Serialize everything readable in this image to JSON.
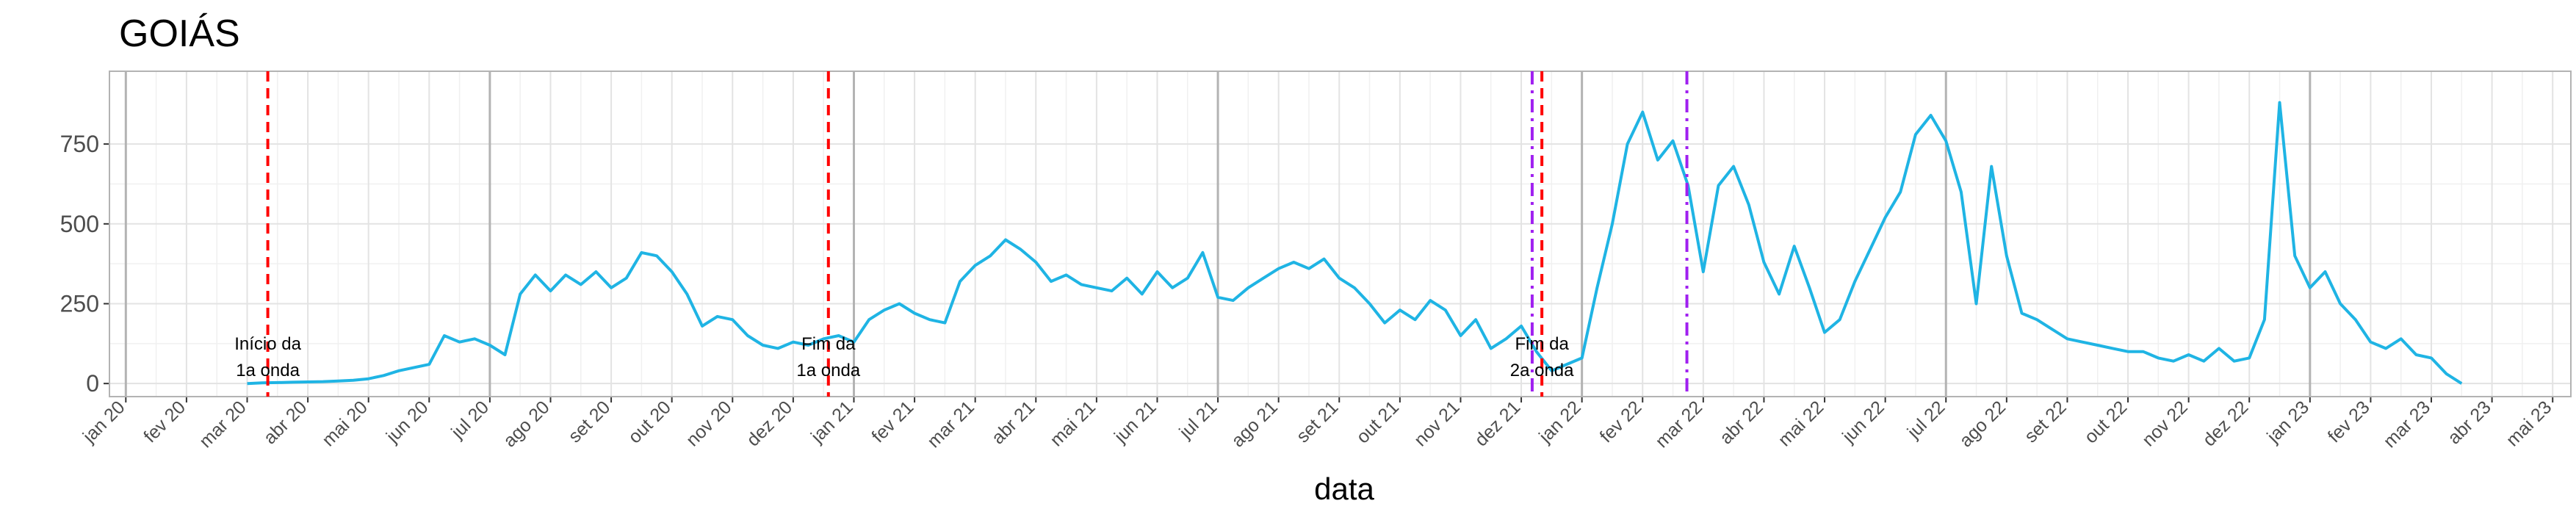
{
  "chart_data": {
    "type": "line",
    "title": "GOIÁS",
    "x_label": "data",
    "xlim": [
      -0.27,
      40.3
    ],
    "ylim": [
      -41,
      978
    ],
    "yticks": [
      0,
      250,
      500,
      750
    ],
    "grid": true,
    "xticks": [
      {
        "value": 0,
        "label": "jan 20"
      },
      {
        "value": 1,
        "label": "fev 20"
      },
      {
        "value": 2,
        "label": "mar 20"
      },
      {
        "value": 3,
        "label": "abr 20"
      },
      {
        "value": 4,
        "label": "mai 20"
      },
      {
        "value": 5,
        "label": "jun 20"
      },
      {
        "value": 6,
        "label": "jul 20"
      },
      {
        "value": 7,
        "label": "ago 20"
      },
      {
        "value": 8,
        "label": "set 20"
      },
      {
        "value": 9,
        "label": "out 20"
      },
      {
        "value": 10,
        "label": "nov 20"
      },
      {
        "value": 11,
        "label": "dez 20"
      },
      {
        "value": 12,
        "label": "jan 21"
      },
      {
        "value": 13,
        "label": "fev 21"
      },
      {
        "value": 14,
        "label": "mar 21"
      },
      {
        "value": 15,
        "label": "abr 21"
      },
      {
        "value": 16,
        "label": "mai 21"
      },
      {
        "value": 17,
        "label": "jun 21"
      },
      {
        "value": 18,
        "label": "jul 21"
      },
      {
        "value": 19,
        "label": "ago 21"
      },
      {
        "value": 20,
        "label": "set 21"
      },
      {
        "value": 21,
        "label": "out 21"
      },
      {
        "value": 22,
        "label": "nov 21"
      },
      {
        "value": 23,
        "label": "dez 21"
      },
      {
        "value": 24,
        "label": "jan 22"
      },
      {
        "value": 25,
        "label": "fev 22"
      },
      {
        "value": 26,
        "label": "mar 22"
      },
      {
        "value": 27,
        "label": "abr 22"
      },
      {
        "value": 28,
        "label": "mai 22"
      },
      {
        "value": 29,
        "label": "jun 22"
      },
      {
        "value": 30,
        "label": "jul 22"
      },
      {
        "value": 31,
        "label": "ago 22"
      },
      {
        "value": 32,
        "label": "set 22"
      },
      {
        "value": 33,
        "label": "out 22"
      },
      {
        "value": 34,
        "label": "nov 22"
      },
      {
        "value": 35,
        "label": "dez 22"
      },
      {
        "value": 36,
        "label": "jan 23"
      },
      {
        "value": 37,
        "label": "fev 23"
      },
      {
        "value": 38,
        "label": "mar 23"
      },
      {
        "value": 39,
        "label": "abr 23"
      },
      {
        "value": 40,
        "label": "mai 23"
      }
    ],
    "color": "#1fb4e4",
    "x": [
      2.0,
      2.25,
      2.5,
      2.75,
      3.0,
      3.25,
      3.5,
      3.75,
      4.0,
      4.25,
      4.5,
      4.75,
      5.0,
      5.25,
      5.5,
      5.75,
      6.0,
      6.25,
      6.5,
      6.75,
      7.0,
      7.25,
      7.5,
      7.75,
      8.0,
      8.25,
      8.5,
      8.75,
      9.0,
      9.25,
      9.5,
      9.75,
      10.0,
      10.25,
      10.5,
      10.75,
      11.0,
      11.25,
      11.5,
      11.75,
      12.0,
      12.25,
      12.5,
      12.75,
      13.0,
      13.25,
      13.5,
      13.75,
      14.0,
      14.25,
      14.5,
      14.75,
      15.0,
      15.25,
      15.5,
      15.75,
      16.0,
      16.25,
      16.5,
      16.75,
      17.0,
      17.25,
      17.5,
      17.75,
      18.0,
      18.25,
      18.5,
      18.75,
      19.0,
      19.25,
      19.5,
      19.75,
      20.0,
      20.25,
      20.5,
      20.75,
      21.0,
      21.25,
      21.5,
      21.75,
      22.0,
      22.25,
      22.5,
      22.75,
      23.0,
      23.25,
      23.5,
      23.75,
      24.0,
      24.25,
      24.5,
      24.75,
      25.0,
      25.25,
      25.5,
      25.75,
      26.0,
      26.25,
      26.5,
      26.75,
      27.0,
      27.25,
      27.5,
      27.75,
      28.0,
      28.25,
      28.5,
      28.75,
      29.0,
      29.25,
      29.5,
      29.75,
      30.0,
      30.25,
      30.5,
      30.75,
      31.0,
      31.25,
      31.5,
      31.75,
      32.0,
      32.25,
      32.5,
      32.75,
      33.0,
      33.25,
      33.5,
      33.75,
      34.0,
      34.25,
      34.5,
      34.75,
      35.0,
      35.25,
      35.5,
      35.75,
      36.0,
      36.25,
      36.5,
      36.75,
      37.0,
      37.25,
      37.5,
      37.75,
      38.0,
      38.25,
      38.5
    ],
    "values": [
      0,
      2,
      3,
      4,
      5,
      6,
      8,
      10,
      15,
      25,
      40,
      50,
      60,
      150,
      130,
      140,
      120,
      90,
      280,
      340,
      290,
      340,
      310,
      350,
      300,
      330,
      410,
      400,
      350,
      280,
      180,
      210,
      200,
      150,
      120,
      110,
      130,
      120,
      140,
      150,
      130,
      200,
      230,
      250,
      220,
      200,
      190,
      320,
      370,
      400,
      450,
      420,
      380,
      320,
      340,
      310,
      300,
      290,
      330,
      280,
      350,
      300,
      330,
      410,
      270,
      260,
      300,
      330,
      360,
      380,
      360,
      390,
      330,
      300,
      250,
      190,
      230,
      200,
      260,
      230,
      150,
      200,
      110,
      140,
      180,
      100,
      40,
      60,
      80,
      300,
      500,
      750,
      850,
      700,
      760,
      620,
      350,
      620,
      680,
      560,
      380,
      280,
      430,
      300,
      160,
      200,
      320,
      420,
      520,
      600,
      780,
      840,
      760,
      600,
      250,
      680,
      400,
      220,
      200,
      170,
      140,
      130,
      120,
      110,
      100,
      100,
      80,
      70,
      90,
      70,
      110,
      70,
      80,
      200,
      880,
      400,
      300,
      350,
      250,
      200,
      130,
      110,
      140,
      90,
      80,
      30,
      0
    ],
    "vlines": [
      {
        "x": 2.34,
        "color": "#ff0000",
        "style": "dashed",
        "label": [
          "Início da",
          "1a onda"
        ]
      },
      {
        "x": 11.58,
        "color": "#ff0000",
        "style": "dashed",
        "label": [
          "Fim da",
          "1a onda"
        ]
      },
      {
        "x": 23.18,
        "color": "#a020f0",
        "style": "dashdot"
      },
      {
        "x": 23.34,
        "color": "#ff0000",
        "style": "dashed",
        "label": [
          "Fim da",
          "2a onda"
        ]
      },
      {
        "x": 25.73,
        "color": "#a020f0",
        "style": "dashdot"
      }
    ]
  }
}
